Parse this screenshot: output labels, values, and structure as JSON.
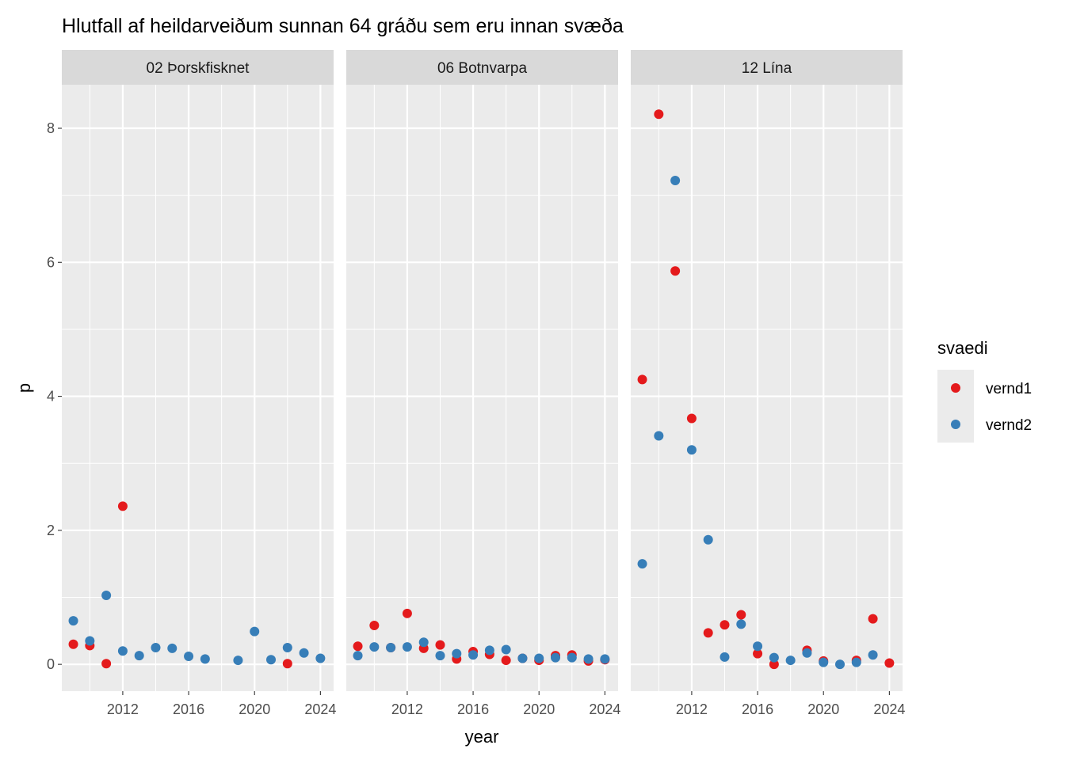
{
  "chart_data": {
    "type": "scatter",
    "title": "Hlutfall af heildarveiðum sunnan 64 gráðu sem eru innan svæða",
    "xlabel": "year",
    "ylabel": "p",
    "xlim": [
      2008.3,
      2024.8
    ],
    "ylim": [
      -0.4,
      8.65
    ],
    "x_ticks": [
      2012,
      2016,
      2020,
      2024
    ],
    "y_ticks": [
      0,
      2,
      4,
      6,
      8
    ],
    "grid": true,
    "legend": {
      "title": "svaedi",
      "position": "right",
      "entries": [
        {
          "name": "vernd1",
          "color": "#E41A1C"
        },
        {
          "name": "vernd2",
          "color": "#377EB8"
        }
      ]
    },
    "panels": [
      {
        "label": "02 Þorskfisknet",
        "series": [
          {
            "name": "vernd1",
            "points": [
              [
                2009,
                0.3
              ],
              [
                2010,
                0.28
              ],
              [
                2011,
                0.01
              ],
              [
                2012,
                2.36
              ],
              [
                2022,
                0.01
              ]
            ]
          },
          {
            "name": "vernd2",
            "points": [
              [
                2009,
                0.65
              ],
              [
                2010,
                0.35
              ],
              [
                2011,
                1.03
              ],
              [
                2012,
                0.2
              ],
              [
                2013,
                0.13
              ],
              [
                2014,
                0.25
              ],
              [
                2015,
                0.24
              ],
              [
                2016,
                0.12
              ],
              [
                2017,
                0.08
              ],
              [
                2019,
                0.06
              ],
              [
                2020,
                0.49
              ],
              [
                2021,
                0.07
              ],
              [
                2022,
                0.25
              ],
              [
                2023,
                0.17
              ],
              [
                2024,
                0.09
              ]
            ]
          }
        ]
      },
      {
        "label": "06 Botnvarpa",
        "series": [
          {
            "name": "vernd1",
            "points": [
              [
                2009,
                0.27
              ],
              [
                2010,
                0.58
              ],
              [
                2011,
                0.25
              ],
              [
                2012,
                0.76
              ],
              [
                2013,
                0.24
              ],
              [
                2014,
                0.29
              ],
              [
                2015,
                0.08
              ],
              [
                2016,
                0.19
              ],
              [
                2017,
                0.15
              ],
              [
                2018,
                0.06
              ],
              [
                2019,
                0.09
              ],
              [
                2020,
                0.06
              ],
              [
                2021,
                0.13
              ],
              [
                2022,
                0.14
              ],
              [
                2023,
                0.05
              ],
              [
                2024,
                0.07
              ]
            ]
          },
          {
            "name": "vernd2",
            "points": [
              [
                2009,
                0.13
              ],
              [
                2010,
                0.26
              ],
              [
                2011,
                0.25
              ],
              [
                2012,
                0.26
              ],
              [
                2013,
                0.33
              ],
              [
                2014,
                0.13
              ],
              [
                2015,
                0.16
              ],
              [
                2016,
                0.14
              ],
              [
                2017,
                0.21
              ],
              [
                2018,
                0.22
              ],
              [
                2019,
                0.09
              ],
              [
                2020,
                0.09
              ],
              [
                2021,
                0.1
              ],
              [
                2022,
                0.1
              ],
              [
                2023,
                0.08
              ],
              [
                2024,
                0.08
              ]
            ]
          }
        ]
      },
      {
        "label": "12 Lína",
        "series": [
          {
            "name": "vernd1",
            "points": [
              [
                2009,
                4.25
              ],
              [
                2010,
                8.21
              ],
              [
                2011,
                5.87
              ],
              [
                2012,
                3.67
              ],
              [
                2013,
                0.47
              ],
              [
                2014,
                0.59
              ],
              [
                2015,
                0.74
              ],
              [
                2016,
                0.16
              ],
              [
                2017,
                0.0
              ],
              [
                2019,
                0.21
              ],
              [
                2020,
                0.05
              ],
              [
                2022,
                0.06
              ],
              [
                2023,
                0.68
              ],
              [
                2024,
                0.02
              ]
            ]
          },
          {
            "name": "vernd2",
            "points": [
              [
                2009,
                1.5
              ],
              [
                2010,
                3.41
              ],
              [
                2011,
                7.22
              ],
              [
                2012,
                3.2
              ],
              [
                2013,
                1.86
              ],
              [
                2014,
                0.11
              ],
              [
                2015,
                0.6
              ],
              [
                2016,
                0.27
              ],
              [
                2017,
                0.1
              ],
              [
                2018,
                0.06
              ],
              [
                2019,
                0.17
              ],
              [
                2020,
                0.03
              ],
              [
                2021,
                0.0
              ],
              [
                2022,
                0.03
              ],
              [
                2023,
                0.14
              ]
            ]
          }
        ]
      }
    ]
  }
}
